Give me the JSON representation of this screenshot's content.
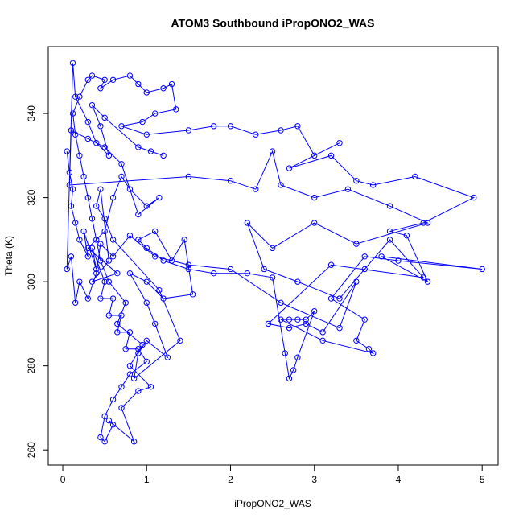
{
  "chart_data": {
    "type": "line",
    "markers": true,
    "title": "ATOM3 Southbound iPropONO2_WAS",
    "x_label": "iPropONO2_WAS",
    "y_label": "Theta (K)",
    "color": "#0000ff",
    "xlim": [
      -0.173,
      5.19
    ],
    "ylim": [
      256.4,
      355.9
    ],
    "xticks": [
      0,
      1,
      2,
      3,
      4,
      5
    ],
    "yticks": [
      260,
      280,
      300,
      320,
      340
    ],
    "x": [
      0.05,
      0.08,
      0.12,
      0.1,
      0.15,
      0.2,
      0.3,
      0.25,
      0.4,
      0.35,
      0.5,
      0.45,
      0.6,
      0.55,
      0.7,
      0.65,
      0.8,
      0.75,
      0.9,
      1.0,
      0.8,
      0.7,
      0.6,
      0.5,
      0.45,
      0.5,
      0.6,
      0.55,
      0.85,
      0.7,
      0.9,
      1.05,
      0.8,
      0.95,
      0.65,
      0.75,
      0.55,
      0.45,
      0.4,
      0.35,
      0.3,
      0.25,
      0.2,
      0.15,
      0.12,
      0.2,
      0.3,
      0.35,
      0.5,
      0.45,
      0.6,
      0.8,
      0.9,
      1.0,
      1.2,
      1.3,
      1.35,
      1.1,
      0.95,
      0.7,
      1.0,
      1.5,
      1.8,
      2.0,
      2.3,
      2.6,
      2.8,
      3.0,
      3.3,
      2.7,
      3.2,
      3.5,
      3.7,
      4.2,
      4.9,
      4.3,
      3.9,
      4.1,
      4.35,
      3.8,
      5.0,
      4.0,
      3.6,
      3.2,
      3.6,
      3.5,
      3.65,
      3.7,
      3.1,
      2.6,
      2.7,
      2.8,
      2.9,
      3.0,
      2.8,
      2.75,
      2.7,
      2.65,
      2.5,
      2.2,
      1.8,
      1.5,
      1.2,
      1.0,
      0.9,
      1.1,
      1.3,
      1.45,
      1.55,
      1.2,
      1.0,
      0.8,
      1.0,
      1.1,
      1.25,
      1.0,
      0.9,
      0.85,
      1.4,
      1.15,
      0.6,
      0.5,
      0.4,
      0.45,
      0.55,
      0.35,
      0.65,
      0.3,
      0.5,
      0.6,
      0.7,
      0.8,
      1.0,
      1.15,
      0.9,
      0.7,
      0.5,
      0.3,
      0.1,
      0.08,
      1.5,
      2.0,
      2.3,
      2.5,
      2.6,
      3.0,
      3.4,
      3.9,
      4.35,
      3.5,
      3.0,
      2.5,
      2.2,
      2.4,
      2.8,
      3.3,
      3.6,
      3.9,
      4.3,
      3.2,
      2.45,
      2.7,
      2.9,
      3.1,
      3.5,
      3.3,
      2.6,
      2.0,
      1.5,
      1.1,
      0.8,
      0.6,
      0.45,
      0.4,
      0.3,
      0.2,
      0.15,
      0.1,
      0.05,
      0.12,
      0.15,
      0.3,
      0.4,
      0.55,
      0.45,
      0.35,
      0.5,
      0.9,
      1.05,
      1.2
    ],
    "y": [
      331,
      326,
      322,
      318,
      314,
      310,
      306,
      312,
      303,
      308,
      300,
      296,
      296,
      292,
      292,
      288,
      288,
      284,
      284,
      281,
      278,
      275,
      272,
      268,
      263,
      262,
      266,
      267,
      262,
      270,
      274,
      275,
      280,
      285,
      290,
      295,
      300,
      305,
      310,
      315,
      320,
      325,
      330,
      335,
      340,
      344,
      348,
      349,
      348,
      346,
      348,
      349,
      347,
      345,
      346,
      347,
      341,
      340,
      338,
      337,
      335,
      336,
      337,
      337,
      335,
      336,
      337,
      330,
      333,
      327,
      330,
      324,
      323,
      325,
      320,
      314,
      312,
      311,
      300,
      306,
      303,
      305,
      306,
      296,
      291,
      286,
      284,
      283,
      286,
      291,
      291,
      291,
      291,
      293,
      282,
      279,
      277,
      283,
      301,
      302,
      302,
      303,
      305,
      308,
      310,
      312,
      305,
      310,
      297,
      296,
      300,
      302,
      295,
      290,
      282,
      286,
      283,
      277,
      286,
      298,
      310,
      315,
      318,
      322,
      305,
      300,
      302,
      308,
      312,
      320,
      325,
      322,
      318,
      320,
      316,
      328,
      332,
      334,
      336,
      323,
      325,
      324,
      322,
      331,
      323,
      320,
      322,
      318,
      314,
      309,
      314,
      308,
      314,
      303,
      300,
      296,
      303,
      310,
      301,
      304,
      290,
      289,
      290,
      288,
      300,
      289,
      295,
      303,
      304,
      306,
      311,
      306,
      309,
      302,
      296,
      300,
      295,
      306,
      303,
      352,
      344,
      338,
      333,
      330,
      337,
      342,
      339,
      332,
      331,
      330
    ]
  }
}
